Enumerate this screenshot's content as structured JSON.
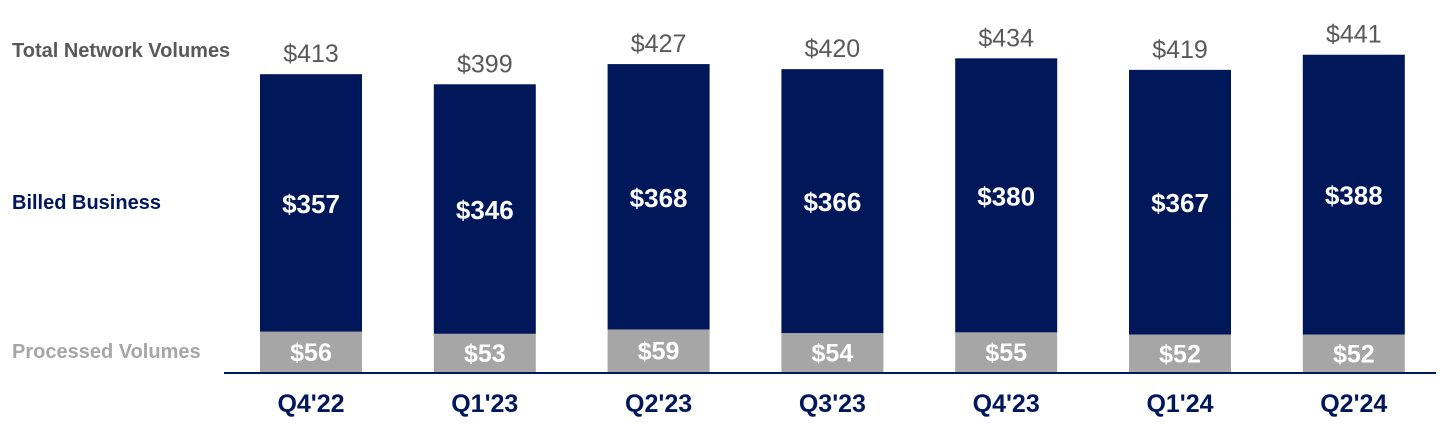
{
  "chart_data": {
    "type": "bar",
    "stacked": true,
    "categories": [
      "Q4'22",
      "Q1'23",
      "Q2'23",
      "Q3'23",
      "Q4'23",
      "Q1'24",
      "Q2'24"
    ],
    "series": [
      {
        "name": "Processed Volumes",
        "values": [
          56,
          53,
          59,
          54,
          55,
          52,
          52
        ],
        "labels": [
          "$56",
          "$53",
          "$59",
          "$54",
          "$55",
          "$52",
          "$52"
        ],
        "color": "#a6a6a6"
      },
      {
        "name": "Billed Business",
        "values": [
          357,
          346,
          368,
          366,
          380,
          367,
          388
        ],
        "labels": [
          "$357",
          "$346",
          "$368",
          "$366",
          "$380",
          "$367",
          "$388"
        ],
        "color": "#001759"
      }
    ],
    "totals": {
      "name": "Total Network Volumes",
      "values": [
        413,
        399,
        427,
        420,
        434,
        419,
        441
      ],
      "labels": [
        "$413",
        "$399",
        "$427",
        "$420",
        "$434",
        "$419",
        "$441"
      ]
    },
    "title": "",
    "xlabel": "",
    "ylabel": "",
    "ylim": [
      0,
      441
    ],
    "grid": false,
    "legend": "left",
    "colors": {
      "billed_business": "#001759",
      "processed_volumes": "#a6a6a6",
      "total_label": "#595959",
      "axis": "#001759",
      "tick_label": "#001759",
      "processed_legend_text": "#a6a6a6",
      "billed_legend_text": "#001759",
      "total_legend_text": "#595959"
    }
  }
}
